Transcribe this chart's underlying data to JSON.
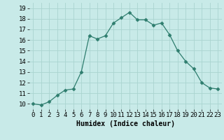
{
  "x": [
    0,
    1,
    2,
    3,
    4,
    5,
    6,
    7,
    8,
    9,
    10,
    11,
    12,
    13,
    14,
    15,
    16,
    17,
    18,
    19,
    20,
    21,
    22,
    23
  ],
  "y": [
    10.0,
    9.9,
    10.2,
    10.8,
    11.3,
    11.4,
    13.0,
    16.4,
    16.1,
    16.4,
    17.6,
    18.1,
    18.6,
    17.9,
    17.9,
    17.4,
    17.6,
    16.5,
    15.0,
    14.0,
    13.3,
    12.0,
    11.5,
    11.4
  ],
  "line_color": "#2e7d6e",
  "marker": "D",
  "marker_size": 2.5,
  "bg_color": "#c8eae8",
  "grid_color": "#aad4d0",
  "xlabel": "Humidex (Indice chaleur)",
  "xlabel_fontsize": 7,
  "tick_fontsize": 6.5,
  "ylim": [
    9.5,
    19.5
  ],
  "xlim": [
    -0.5,
    23.5
  ],
  "yticks": [
    10,
    11,
    12,
    13,
    14,
    15,
    16,
    17,
    18,
    19
  ],
  "xticks": [
    0,
    1,
    2,
    3,
    4,
    5,
    6,
    7,
    8,
    9,
    10,
    11,
    12,
    13,
    14,
    15,
    16,
    17,
    18,
    19,
    20,
    21,
    22,
    23
  ]
}
